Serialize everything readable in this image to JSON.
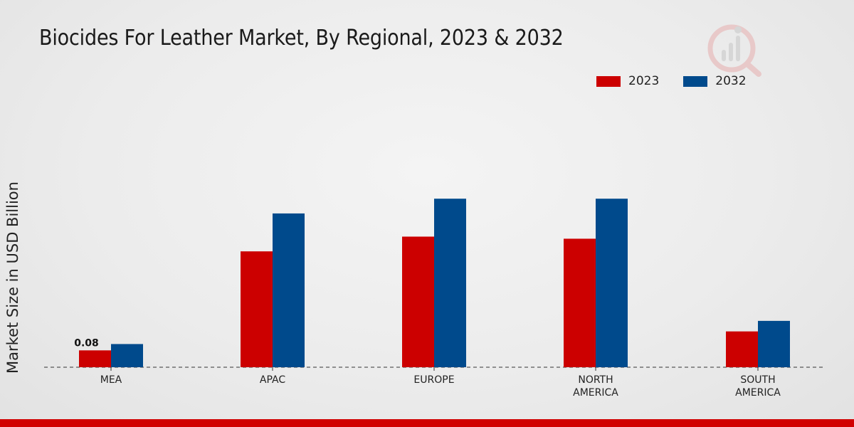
{
  "chart_data": {
    "type": "bar",
    "title": "Biocides For Leather Market, By Regional, 2023 & 2032",
    "xlabel": "",
    "ylabel": "Market Size in USD Billion",
    "categories": [
      "MEA",
      "APAC",
      "EUROPE",
      "NORTH AMERICA",
      "SOUTH AMERICA"
    ],
    "category_lines": [
      [
        "MEA"
      ],
      [
        "APAC"
      ],
      [
        "EUROPE"
      ],
      [
        "NORTH",
        "AMERICA"
      ],
      [
        "SOUTH",
        "AMERICA"
      ]
    ],
    "series": [
      {
        "name": "2023",
        "color": "#cc0000",
        "values": [
          0.08,
          0.55,
          0.62,
          0.61,
          0.17
        ]
      },
      {
        "name": "2032",
        "color": "#004a8c",
        "values": [
          0.11,
          0.73,
          0.8,
          0.8,
          0.22
        ]
      }
    ],
    "data_labels": [
      {
        "series": 0,
        "category": 0,
        "text": "0.08"
      }
    ],
    "ylim": [
      0,
      1.0
    ],
    "grid": false,
    "legend_position": "top-right"
  }
}
